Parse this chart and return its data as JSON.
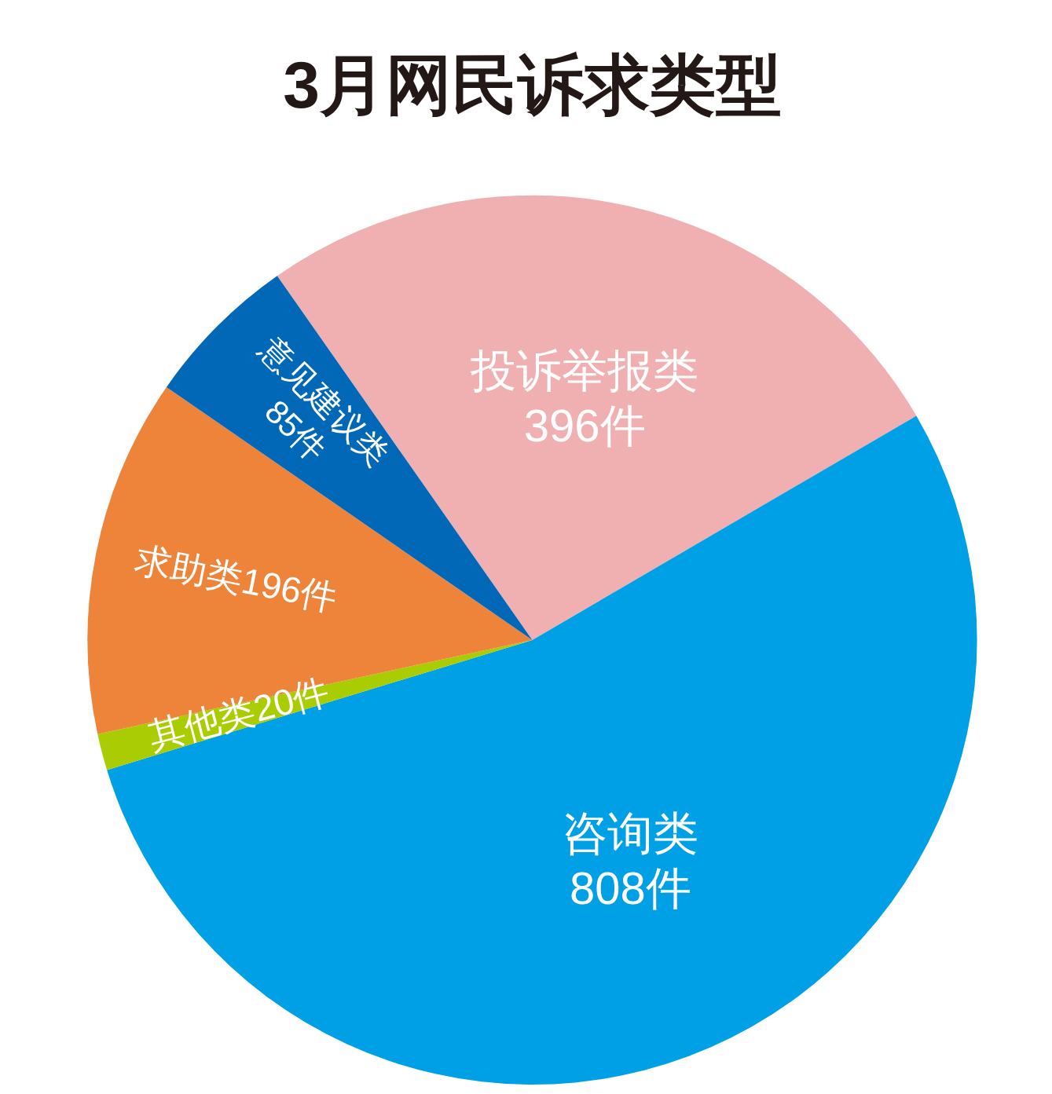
{
  "chart_data": {
    "type": "pie",
    "title": "3月网民诉求类型",
    "categories": [
      "投诉举报类",
      "咨询类",
      "其他类",
      "求助类",
      "意见建议类"
    ],
    "values": [
      396,
      808,
      20,
      196,
      85
    ],
    "value_labels": [
      "396件",
      "808件",
      "20件",
      "196件",
      "85件"
    ],
    "colors": [
      "#f0b0b2",
      "#00a0e6",
      "#aacc03",
      "#ee843a",
      "#0068b6"
    ]
  }
}
